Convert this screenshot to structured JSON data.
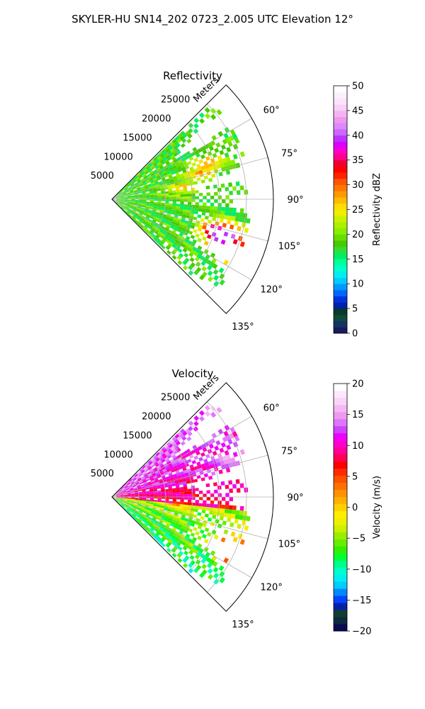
{
  "suptitle": "SKYLER-HU  SN14_202  0723_2.005 UTC Elevation 12°",
  "chart_data": [
    {
      "type": "heatmap",
      "subtype": "polar-sector radar PPI",
      "title": "Reflectivity",
      "range_label": "Meters",
      "range_ticks": [
        5000,
        10000,
        15000,
        20000,
        25000
      ],
      "range_tick_labels": [
        "5000",
        "10000",
        "15000",
        "20000",
        "25000"
      ],
      "rlim": [
        0,
        30000
      ],
      "azimuth_range_deg": [
        45,
        135
      ],
      "azimuth_ticks": [
        60,
        75,
        90,
        105,
        120,
        135
      ],
      "azimuth_tick_labels": [
        "60°",
        "75°",
        "90°",
        "105°",
        "120°",
        "135°"
      ],
      "grid": true,
      "colorbar": {
        "label": "Reflectivity dBZ",
        "vmin": 0,
        "vmax": 50,
        "ticks": [
          0,
          5,
          10,
          15,
          20,
          25,
          30,
          35,
          40,
          45,
          50
        ],
        "tick_labels": [
          "0",
          "5",
          "10",
          "15",
          "20",
          "25",
          "30",
          "35",
          "40",
          "45",
          "50"
        ],
        "colors": [
          "#1a1a5e",
          "#143464",
          "#0f4a3c",
          "#0a3a28",
          "#0022aa",
          "#0033dd",
          "#0066ff",
          "#0099ff",
          "#00ccff",
          "#00eeee",
          "#00ffcc",
          "#00ff99",
          "#00ee66",
          "#33dd33",
          "#44cc00",
          "#66dd00",
          "#88ee00",
          "#aaf000",
          "#ccf000",
          "#eeee00",
          "#ffdd00",
          "#ffbb00",
          "#ff9900",
          "#ff7700",
          "#ff5500",
          "#ff2200",
          "#ff0000",
          "#ee0033",
          "#ff0088",
          "#ff00cc",
          "#dd00ff",
          "#bb33ff",
          "#cc66ff",
          "#dd88ff",
          "#ee99ee",
          "#f4b4f4",
          "#f8d0f8",
          "#fbe4fb",
          "#fdf0fd",
          "#ffffff"
        ]
      },
      "features": [
        {
          "azimuth_deg": 107,
          "range_m": 21000,
          "value": 45
        },
        {
          "azimuth_deg": 112,
          "range_m": 24000,
          "value": 28
        },
        {
          "azimuth_deg": 70,
          "range_m": 18000,
          "value": 28
        },
        {
          "azimuth_deg": 80,
          "range_m": 13000,
          "value": 25
        }
      ]
    },
    {
      "type": "heatmap",
      "subtype": "polar-sector radar PPI",
      "title": "Velocity",
      "range_label": "Meters",
      "range_ticks": [
        5000,
        10000,
        15000,
        20000,
        25000
      ],
      "range_tick_labels": [
        "5000",
        "10000",
        "15000",
        "20000",
        "25000"
      ],
      "rlim": [
        0,
        30000
      ],
      "azimuth_range_deg": [
        45,
        135
      ],
      "azimuth_ticks": [
        60,
        75,
        90,
        105,
        120,
        135
      ],
      "azimuth_tick_labels": [
        "60°",
        "75°",
        "90°",
        "105°",
        "120°",
        "135°"
      ],
      "grid": true,
      "colorbar": {
        "label": "Velocity (m/s)",
        "vmin": -20,
        "vmax": 20,
        "ticks": [
          -20,
          -15,
          -10,
          -5,
          0,
          5,
          10,
          15,
          20
        ],
        "tick_labels": [
          "−20",
          "−15",
          "−10",
          "−5",
          "0",
          "5",
          "10",
          "15",
          "20"
        ],
        "colors": [
          "#0a0a50",
          "#0e2a3e",
          "#123e30",
          "#0022aa",
          "#0044ff",
          "#0088ff",
          "#00ccff",
          "#00eeee",
          "#00ffcc",
          "#00ff88",
          "#00ff33",
          "#33ee00",
          "#66ee00",
          "#99ee00",
          "#ccf000",
          "#eef000",
          "#ffee00",
          "#ffd000",
          "#ffb000",
          "#ff9000",
          "#ff7000",
          "#ff5000",
          "#ff2a00",
          "#ff0000",
          "#ff0055",
          "#ff0099",
          "#ff00cc",
          "#ee00ff",
          "#cc44ff",
          "#dd77ff",
          "#ee99ee",
          "#f4b8f4",
          "#f9d4f9",
          "#fde8fd",
          "#ffffff"
        ]
      },
      "features": [
        {
          "azimuth_deg": 72,
          "range_m": 22000,
          "value": 14
        },
        {
          "azimuth_deg": 90,
          "range_m": 12000,
          "value": 8
        },
        {
          "azimuth_deg": 112,
          "range_m": 14000,
          "value": -6
        },
        {
          "azimuth_deg": 113,
          "range_m": 24000,
          "value": 9
        }
      ]
    }
  ]
}
